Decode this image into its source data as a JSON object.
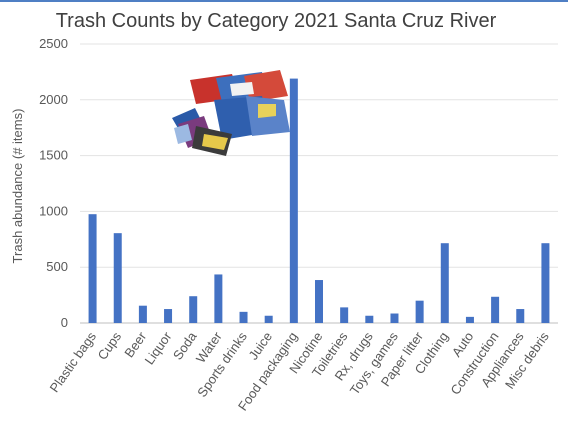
{
  "chart_data": {
    "type": "bar",
    "title": "Trash Counts by Category 2021 Santa Cruz River",
    "ylabel": "Trash abundance (# items)",
    "xlabel": "",
    "ylim": [
      0,
      2500
    ],
    "yticks": [
      "0",
      "500",
      "1000",
      "1500",
      "2000",
      "2500"
    ],
    "grid": true,
    "bar_color": "#4472c4",
    "categories": [
      "Plastic bags",
      "Cups",
      "Beer",
      "Liquor",
      "Soda",
      "Water",
      "Sports drinks",
      "Juice",
      "Food packaging",
      "Nicotine",
      "Toiletries",
      "Rx, drugs",
      "Toys, games",
      "Paper litter",
      "Clothing",
      "Auto",
      "Construction",
      "Appliances",
      "Misc debris"
    ],
    "values": [
      975,
      805,
      155,
      125,
      240,
      435,
      100,
      65,
      2190,
      385,
      140,
      65,
      85,
      200,
      715,
      55,
      235,
      125,
      715
    ]
  }
}
